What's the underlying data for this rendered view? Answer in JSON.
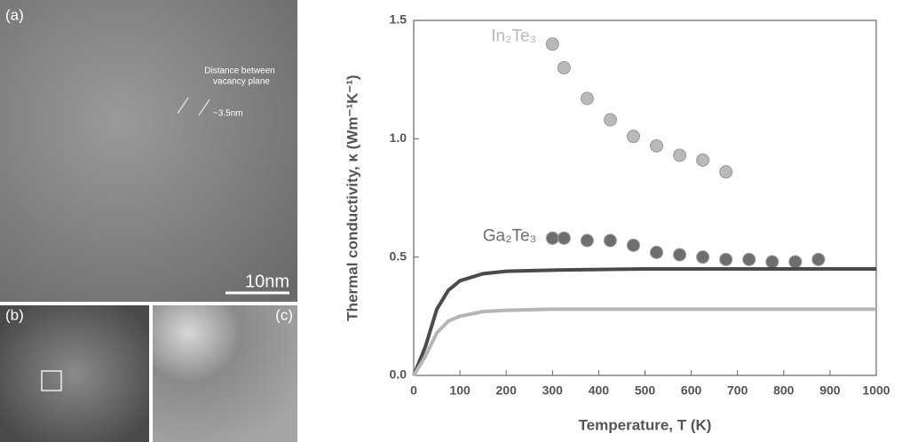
{
  "panels": {
    "a": {
      "label": "(a)",
      "annotation": [
        "Distance between",
        "vacancy plane"
      ],
      "spacing": "~3.5nm",
      "scale_bar": "10nm"
    },
    "b": {
      "label": "(b)"
    },
    "c": {
      "label": "(c)"
    }
  },
  "chart_data": {
    "type": "scatter",
    "xlabel": "Temperature, T (K)",
    "ylabel": "Thermal conductivity, κ (Wm⁻¹K⁻¹)",
    "xlim": [
      0,
      1000
    ],
    "xticks": [
      0,
      100,
      200,
      300,
      400,
      500,
      600,
      700,
      800,
      900,
      1000
    ],
    "ylim": [
      0,
      1.5
    ],
    "yticks": [
      {
        "value": 0,
        "label": "0.0"
      },
      {
        "value": 0.5,
        "label": "0.5"
      },
      {
        "value": 1,
        "label": "1.0"
      },
      {
        "value": 1.5,
        "label": "1.5"
      }
    ],
    "series": [
      {
        "name": "In₂Te₃",
        "type": "scatter",
        "color": "#b9b9b9",
        "x": [
          300,
          325,
          375,
          425,
          475,
          525,
          575,
          625,
          675
        ],
        "values": [
          1.4,
          1.3,
          1.17,
          1.08,
          1.01,
          0.97,
          0.93,
          0.91,
          0.86
        ]
      },
      {
        "name": "Ga₂Te₃",
        "type": "scatter",
        "color": "#6e6e6e",
        "x": [
          300,
          325,
          375,
          425,
          475,
          525,
          575,
          625,
          675,
          725,
          775,
          825,
          875
        ],
        "values": [
          0.58,
          0.58,
          0.57,
          0.57,
          0.55,
          0.52,
          0.51,
          0.5,
          0.49,
          0.49,
          0.48,
          0.48,
          0.49
        ]
      },
      {
        "type": "line",
        "color": "#4a4a4a",
        "x": [
          0,
          25,
          50,
          75,
          100,
          150,
          200,
          300,
          500,
          1000
        ],
        "values": [
          0,
          0.12,
          0.28,
          0.36,
          0.4,
          0.43,
          0.44,
          0.445,
          0.45,
          0.45
        ]
      },
      {
        "type": "line",
        "color": "#b5b5b5",
        "x": [
          0,
          25,
          50,
          75,
          100,
          150,
          200,
          300,
          500,
          1000
        ],
        "values": [
          0,
          0.08,
          0.18,
          0.23,
          0.25,
          0.27,
          0.275,
          0.28,
          0.28,
          0.28
        ]
      }
    ]
  }
}
